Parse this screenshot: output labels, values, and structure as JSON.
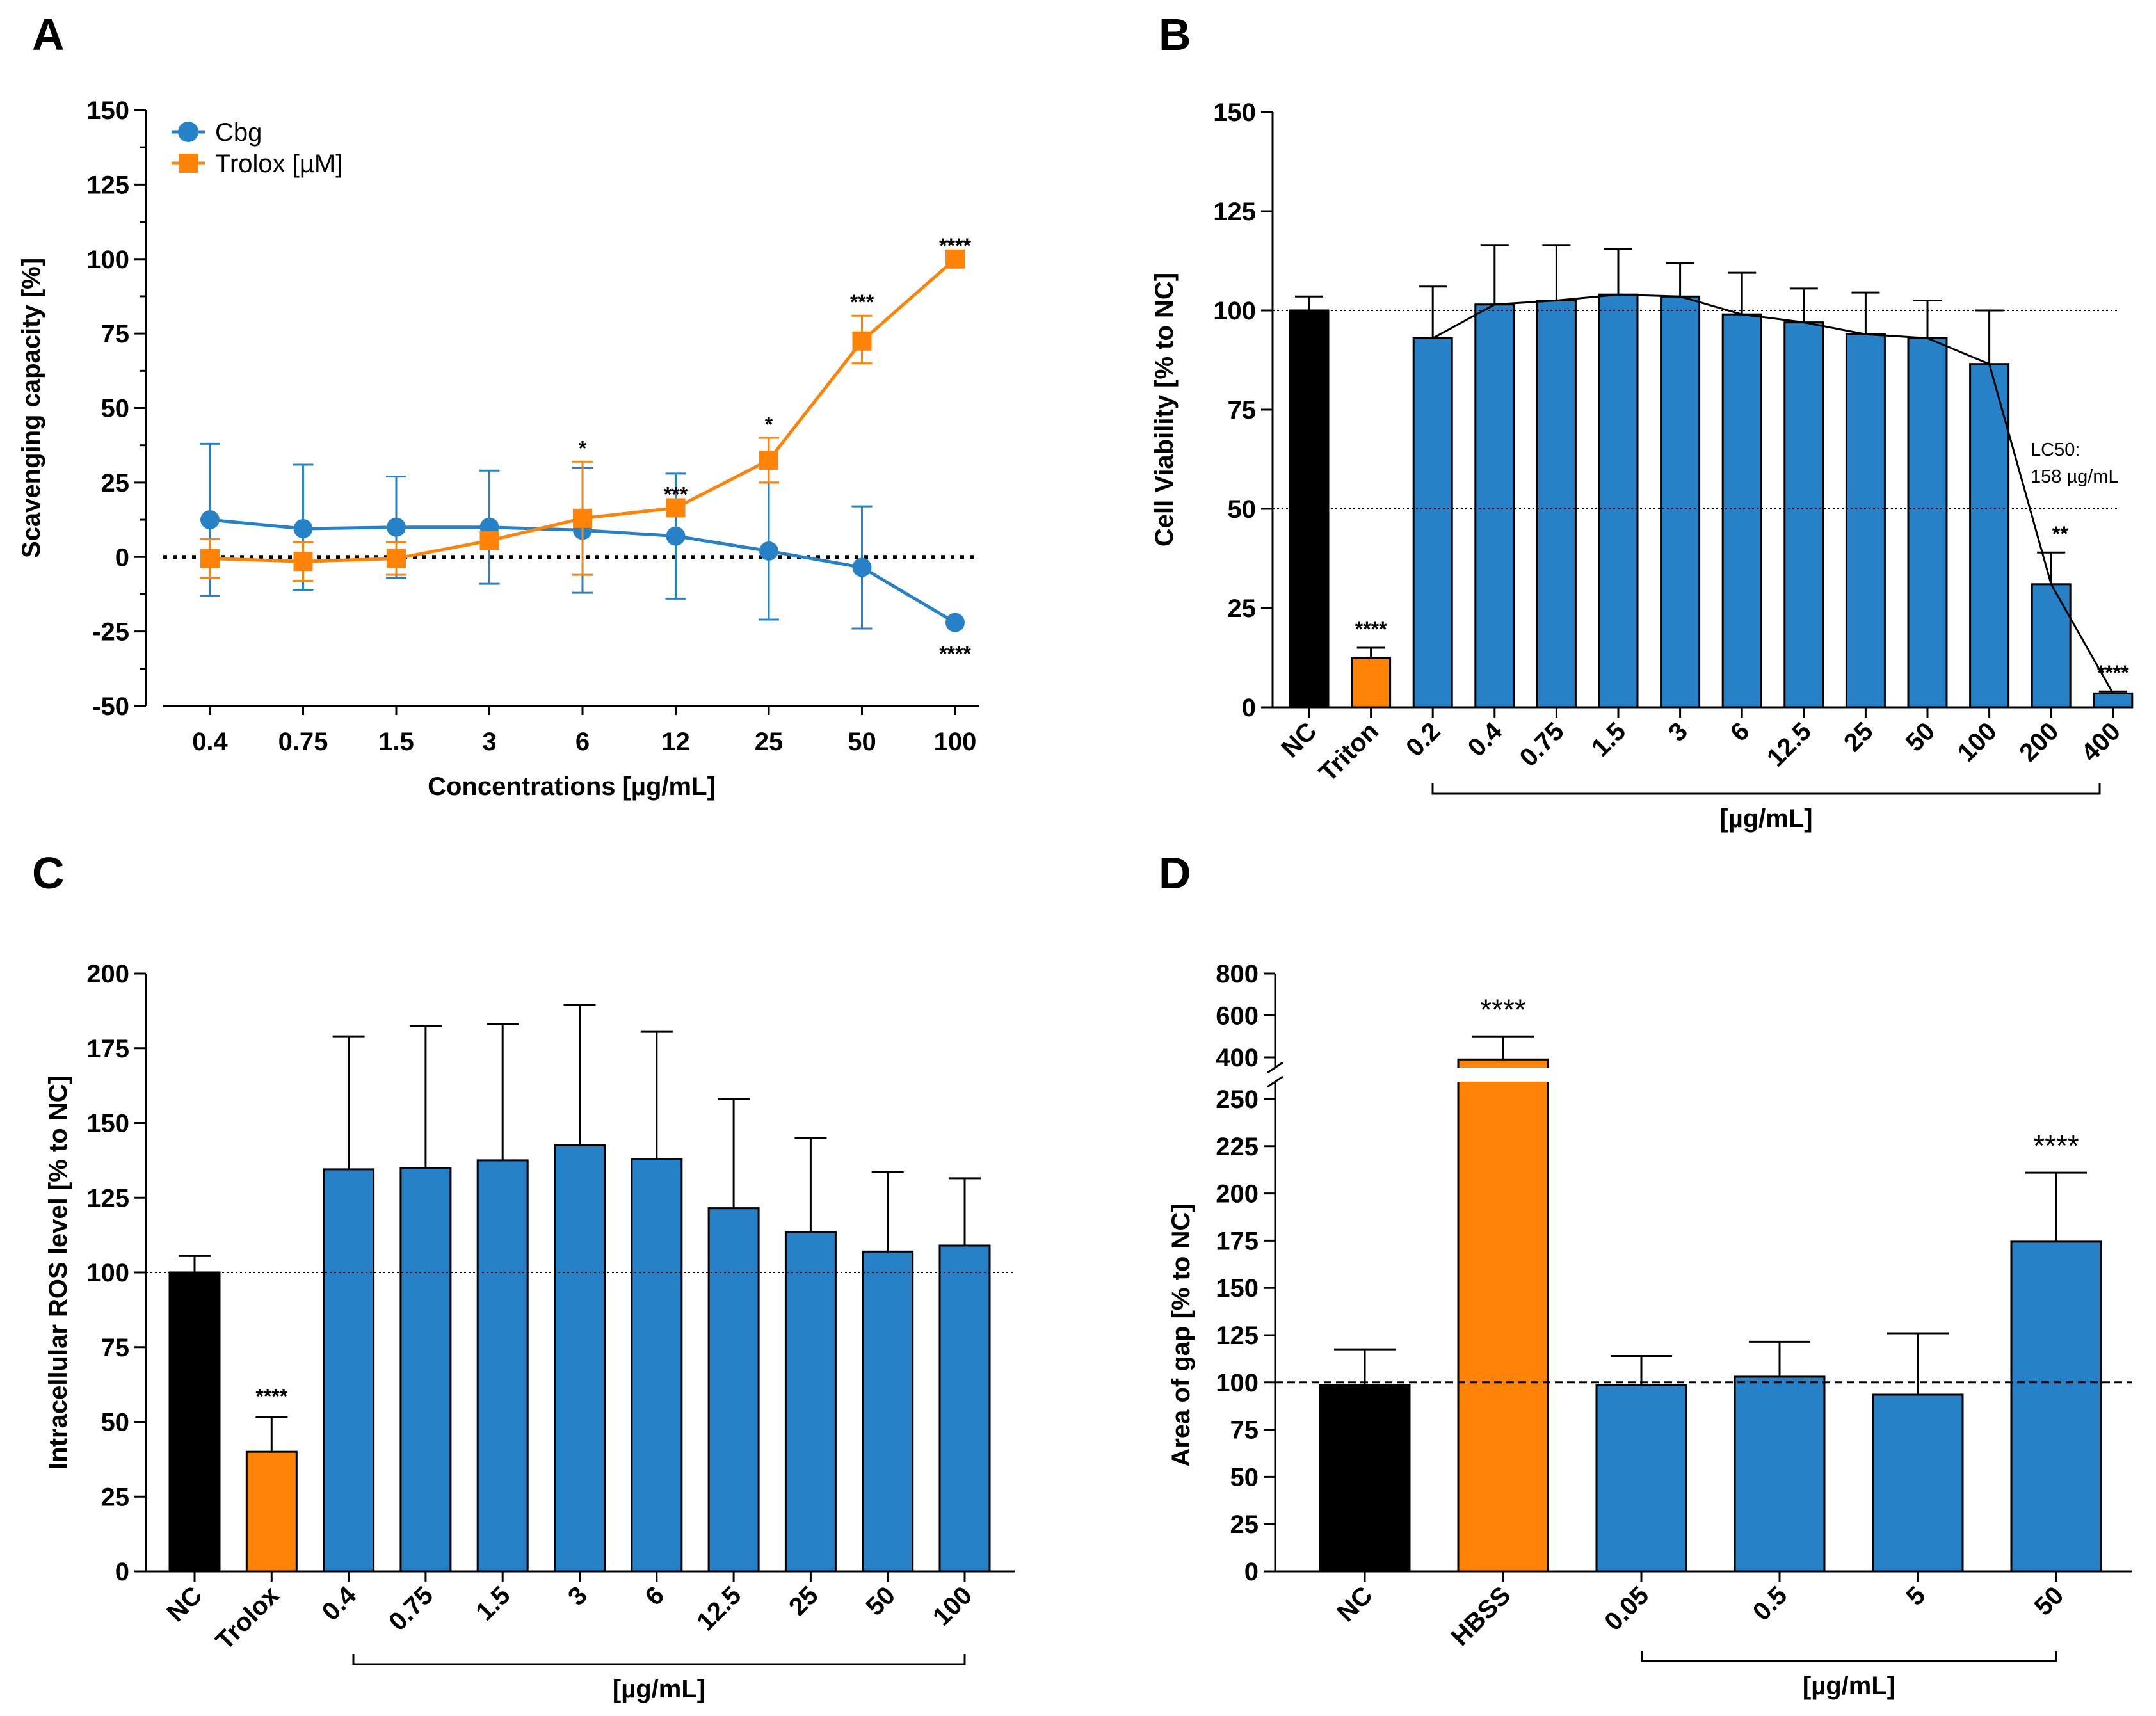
{
  "chart_data": [
    {
      "panel": "A",
      "type": "line",
      "xlabel": "Concentrations [µg/mL]",
      "ylabel": "Scavenging capacity [%]",
      "ylim": [
        -50,
        150
      ],
      "yticks": [
        "150",
        "125",
        "100",
        "75",
        "50",
        "25",
        "0",
        "-25",
        "-50"
      ],
      "categories": [
        "0.4",
        "0.75",
        "1.5",
        "3",
        "6",
        "12",
        "25",
        "50",
        "100"
      ],
      "series": [
        {
          "name": "Cbg",
          "color": "#2781c6",
          "marker": "circle",
          "values": [
            12.5,
            9.5,
            10,
            10,
            9,
            7,
            2,
            -3.5,
            -22
          ],
          "upper": [
            38,
            31,
            27,
            29,
            30,
            28,
            25,
            17,
            null
          ],
          "lower": [
            -13,
            -11,
            -7,
            -9,
            -12,
            -14,
            -21,
            -24,
            null
          ],
          "significance": [
            "",
            "",
            "",
            "",
            "",
            "",
            "",
            "",
            "****"
          ]
        },
        {
          "name": "Trolox [µM]",
          "color": "#ff8307",
          "marker": "square",
          "values": [
            -0.5,
            -1.5,
            -0.5,
            5.5,
            13,
            16.5,
            32.5,
            72.5,
            100
          ],
          "upper": [
            6,
            5,
            5,
            null,
            32,
            null,
            40,
            81,
            null
          ],
          "lower": [
            -7,
            -8,
            -6,
            null,
            -6,
            null,
            25,
            65,
            null
          ],
          "significance": [
            "",
            "",
            "",
            "",
            "*",
            "***",
            "*",
            "***",
            "****"
          ]
        }
      ],
      "reference_line": 0
    },
    {
      "panel": "B",
      "type": "bar",
      "ylabel": "Cell Viability [% to NC]",
      "ylim": [
        0,
        150
      ],
      "yticks": [
        "150",
        "125",
        "100",
        "75",
        "50",
        "25",
        "0"
      ],
      "categories": [
        "NC",
        "Triton",
        "0.2",
        "0.4",
        "0.75",
        "1.5",
        "3",
        "6",
        "12.5",
        "25",
        "50",
        "100",
        "200",
        "400"
      ],
      "values": [
        100,
        12.5,
        93,
        101.5,
        102.5,
        104,
        103.5,
        99,
        97,
        94,
        93,
        86.5,
        31,
        3.5
      ],
      "errors": [
        3.5,
        2.5,
        13,
        15,
        14,
        11.5,
        8.5,
        10.5,
        8.5,
        10.5,
        9.5,
        13.5,
        8,
        0.5
      ],
      "colors": [
        "#000000",
        "#ff8307",
        "#2781c6",
        "#2781c6",
        "#2781c6",
        "#2781c6",
        "#2781c6",
        "#2781c6",
        "#2781c6",
        "#2781c6",
        "#2781c6",
        "#2781c6",
        "#2781c6",
        "#2781c6"
      ],
      "significance": [
        "",
        "****",
        "",
        "",
        "",
        "",
        "",
        "",
        "",
        "",
        "",
        "",
        "**",
        "****"
      ],
      "reference_lines": [
        100,
        50
      ],
      "group_label": "[µg/mL]",
      "annotation": [
        "LC50:",
        "158 µg/mL"
      ],
      "fit_curve": true
    },
    {
      "panel": "C",
      "type": "bar",
      "ylabel": "Intracellular ROS level [% to NC]",
      "ylim": [
        0,
        200
      ],
      "yticks": [
        "200",
        "175",
        "150",
        "125",
        "100",
        "75",
        "50",
        "25",
        "0"
      ],
      "categories": [
        "NC",
        "Trolox",
        "0.4",
        "0.75",
        "1.5",
        "3",
        "6",
        "12.5",
        "25",
        "50",
        "100"
      ],
      "values": [
        100,
        40,
        134.5,
        135,
        137.5,
        142.5,
        138,
        121.5,
        113.5,
        107,
        109
      ],
      "errors": [
        5.5,
        11.5,
        44.5,
        47.5,
        45.5,
        47,
        42.5,
        36.5,
        31.5,
        26.5,
        22.5
      ],
      "colors": [
        "#000000",
        "#ff8307",
        "#2781c6",
        "#2781c6",
        "#2781c6",
        "#2781c6",
        "#2781c6",
        "#2781c6",
        "#2781c6",
        "#2781c6",
        "#2781c6"
      ],
      "significance": [
        "",
        "****",
        "",
        "",
        "",
        "",
        "",
        "",
        "",
        "",
        ""
      ],
      "reference_lines": [
        100
      ],
      "group_label": "[µg/mL]"
    },
    {
      "panel": "D",
      "type": "bar",
      "ylabel": "Area of gap [% to NC]",
      "ylim": [
        0,
        800
      ],
      "axis_break": [
        260,
        330
      ],
      "yticks_lower": [
        "250",
        "225",
        "200",
        "175",
        "150",
        "125",
        "100",
        "75",
        "50",
        "25",
        "0"
      ],
      "yticks_upper": [
        "800",
        "600",
        "400"
      ],
      "categories": [
        "NC",
        "HBSS",
        "0.05",
        "0.5",
        "5",
        "50"
      ],
      "values": [
        98.5,
        390,
        98.5,
        103,
        93.5,
        174.5
      ],
      "errors": [
        19,
        110,
        15.5,
        18.5,
        32.5,
        36.5
      ],
      "colors": [
        "#000000",
        "#ff8307",
        "#2781c6",
        "#2781c6",
        "#2781c6",
        "#2781c6"
      ],
      "significance": [
        "",
        "****",
        "",
        "",
        "",
        "****"
      ],
      "reference_lines": [
        100
      ],
      "group_label": "[µg/mL]"
    }
  ]
}
